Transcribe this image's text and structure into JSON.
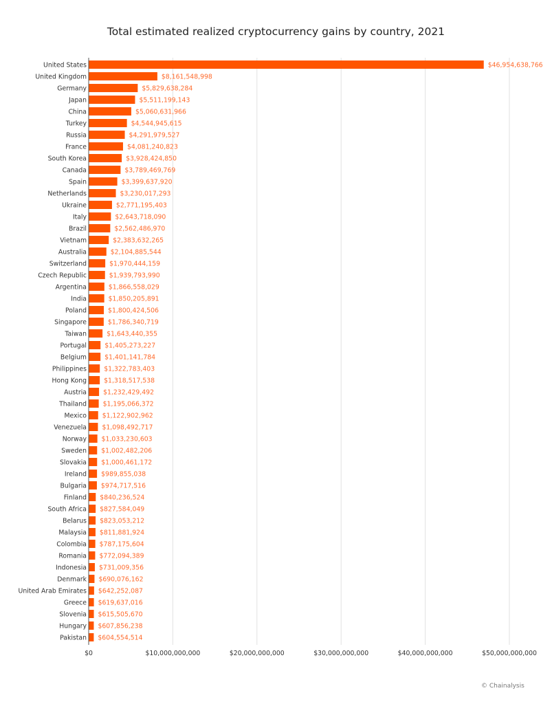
{
  "chart_data": {
    "type": "bar",
    "orientation": "horizontal",
    "title": "Total estimated realized cryptocurrency gains by country, 2021",
    "xlabel": "",
    "ylabel": "",
    "xlim": [
      0,
      50000000000
    ],
    "x_ticks": [
      0,
      10000000000,
      20000000000,
      30000000000,
      40000000000,
      50000000000
    ],
    "x_tick_labels": [
      "$0",
      "$10,000,000,000",
      "$20,000,000,000",
      "$30,000,000,000",
      "$40,000,000,000",
      "$50,000,000,000"
    ],
    "grid": "vertical",
    "bar_color": "#ff5500",
    "label_color": "#ff6a2b",
    "categories": [
      "United States",
      "United Kingdom",
      "Germany",
      "Japan",
      "China",
      "Turkey",
      "Russia",
      "France",
      "South Korea",
      "Canada",
      "Spain",
      "Netherlands",
      "Ukraine",
      "Italy",
      "Brazil",
      "Vietnam",
      "Australia",
      "Switzerland",
      "Czech Republic",
      "Argentina",
      "India",
      "Poland",
      "Singapore",
      "Taiwan",
      "Portugal",
      "Belgium",
      "Philippines",
      "Hong Kong",
      "Austria",
      "Thailand",
      "Mexico",
      "Venezuela",
      "Norway",
      "Sweden",
      "Slovakia",
      "Ireland",
      "Bulgaria",
      "Finland",
      "South Africa",
      "Belarus",
      "Malaysia",
      "Colombia",
      "Romania",
      "Indonesia",
      "Denmark",
      "United Arab Emirates",
      "Greece",
      "Slovenia",
      "Hungary",
      "Pakistan"
    ],
    "values": [
      46954638766,
      8161548998,
      5829638284,
      5511199143,
      5060631966,
      4544945615,
      4291979527,
      4081240823,
      3928424850,
      3789469769,
      3399637920,
      3230017293,
      2771195403,
      2643718090,
      2562486970,
      2383632265,
      2104885544,
      1970444159,
      1939793990,
      1866558029,
      1850205891,
      1800424506,
      1786340719,
      1643440355,
      1405273227,
      1401141784,
      1322783403,
      1318517538,
      1232429492,
      1195066372,
      1122902962,
      1098492717,
      1033230603,
      1002482206,
      1000461172,
      989855038,
      974717516,
      840236524,
      827584049,
      823053212,
      811881924,
      787175604,
      772094389,
      731009356,
      690076162,
      642252087,
      619637016,
      615505670,
      607856238,
      604554514
    ],
    "data_labels": [
      "$46,954,638,766",
      "$8,161,548,998",
      "$5,829,638,284",
      "$5,511,199,143",
      "$5,060,631,966",
      "$4,544,945,615",
      "$4,291,979,527",
      "$4,081,240,823",
      "$3,928,424,850",
      "$3,789,469,769",
      "$3,399,637,920",
      "$3,230,017,293",
      "$2,771,195,403",
      "$2,643,718,090",
      "$2,562,486,970",
      "$2,383,632,265",
      "$2,104,885,544",
      "$1,970,444,159",
      "$1,939,793,990",
      "$1,866,558,029",
      "$1,850,205,891",
      "$1,800,424,506",
      "$1,786,340,719",
      "$1,643,440,355",
      "$1,405,273,227",
      "$1,401,141,784",
      "$1,322,783,403",
      "$1,318,517,538",
      "$1,232,429,492",
      "$1,195,066,372",
      "$1,122,902,962",
      "$1,098,492,717",
      "$1,033,230,603",
      "$1,002,482,206",
      "$1,000,461,172",
      "$989,855,038",
      "$974,717,516",
      "$840,236,524",
      "$827,584,049",
      "$823,053,212",
      "$811,881,924",
      "$787,175,604",
      "$772,094,389",
      "$731,009,356",
      "$690,076,162",
      "$642,252,087",
      "$619,637,016",
      "$615,505,670",
      "$607,856,238",
      "$604,554,514"
    ]
  },
  "credit": "© Chainalysis"
}
